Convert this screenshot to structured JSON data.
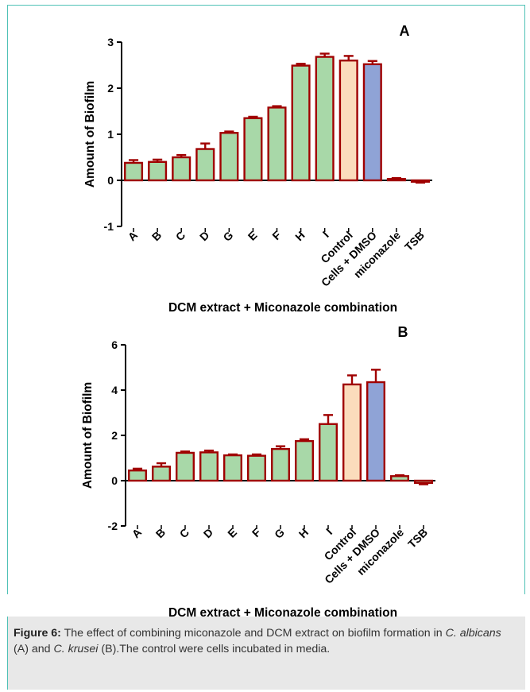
{
  "chart_data": [
    {
      "type": "bar",
      "panel_label": "A",
      "title": "",
      "xlabel": "DCM extract + Miconazole combination",
      "ylabel": "Amount of Biofilm",
      "ylim": [
        -1,
        3
      ],
      "yticks": [
        -1,
        0,
        1,
        2,
        3
      ],
      "categories": [
        "A",
        "B",
        "C",
        "D",
        "G",
        "E",
        "F",
        "H",
        "I",
        "Control",
        "Cells + DMSO",
        "miconazole",
        "TSB"
      ],
      "values": [
        0.38,
        0.4,
        0.5,
        0.68,
        1.03,
        1.35,
        1.58,
        2.49,
        2.68,
        2.6,
        2.52,
        0.03,
        -0.03
      ],
      "errors": [
        0.06,
        0.05,
        0.05,
        0.12,
        0.03,
        0.03,
        0.03,
        0.04,
        0.07,
        0.1,
        0.07,
        0.02,
        0.02
      ],
      "colors": [
        "#a8d8a8",
        "#a8d8a8",
        "#a8d8a8",
        "#a8d8a8",
        "#a8d8a8",
        "#a8d8a8",
        "#a8d8a8",
        "#a8d8a8",
        "#a8d8a8",
        "#fbdcbc",
        "#8fa3d6",
        "#a8d8a8",
        "#a8d8a8"
      ]
    },
    {
      "type": "bar",
      "panel_label": "B",
      "title": "",
      "xlabel": "DCM extract + Miconazole  combination",
      "ylabel": "Amount of Biofilm",
      "ylim": [
        -2,
        6
      ],
      "yticks": [
        -2,
        0,
        2,
        4,
        6
      ],
      "categories": [
        "A",
        "B",
        "C",
        "D",
        "E",
        "F",
        "G",
        "H",
        "I",
        "Control",
        "Cells + DMSO",
        "miconazole",
        "TSB"
      ],
      "values": [
        0.45,
        0.62,
        1.23,
        1.25,
        1.12,
        1.1,
        1.4,
        1.75,
        2.5,
        4.25,
        4.35,
        0.2,
        -0.1
      ],
      "errors": [
        0.08,
        0.15,
        0.06,
        0.08,
        0.04,
        0.06,
        0.12,
        0.08,
        0.4,
        0.4,
        0.55,
        0.04,
        0.06
      ],
      "colors": [
        "#a8d8a8",
        "#a8d8a8",
        "#a8d8a8",
        "#a8d8a8",
        "#a8d8a8",
        "#a8d8a8",
        "#a8d8a8",
        "#a8d8a8",
        "#a8d8a8",
        "#fbdcbc",
        "#8fa3d6",
        "#a8d8a8",
        "#a8d8a8"
      ]
    }
  ],
  "colors": {
    "bar_outline": "#a00000",
    "frame": "#4fc1b6",
    "caption_bg": "#e8e8e8"
  },
  "caption": {
    "label": "Figure 6:",
    "text_1": " The effect of combining miconazole and DCM extract on biofilm formation in ",
    "species_1": "C. albicans",
    "text_2": " (A) and ",
    "species_2": "C. krusei",
    "text_3": " (B).The control were cells incubated in media."
  }
}
